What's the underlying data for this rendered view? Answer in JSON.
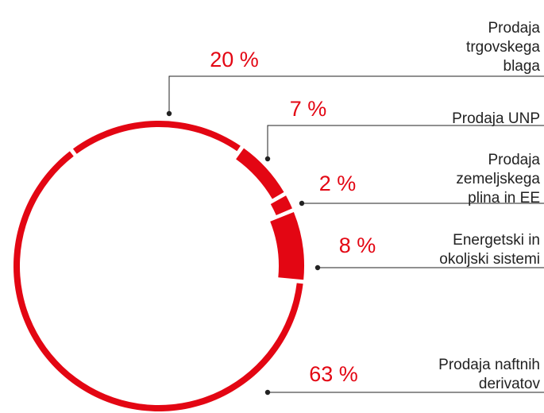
{
  "chart_data": {
    "type": "pie",
    "categories": [
      "Prodaja\ntrgovskega\nblaga",
      "Prodaja UNP",
      "Prodaja\nzemeljskega\nplina in EE",
      "Energetski in\nokoljski sistemi",
      "Prodaja naftnih\nderivatov"
    ],
    "values": [
      20,
      7,
      2,
      8,
      63
    ],
    "value_labels": [
      "20 %",
      "7 %",
      "2 %",
      "8 %",
      "63 %"
    ],
    "color": "#e30613"
  }
}
